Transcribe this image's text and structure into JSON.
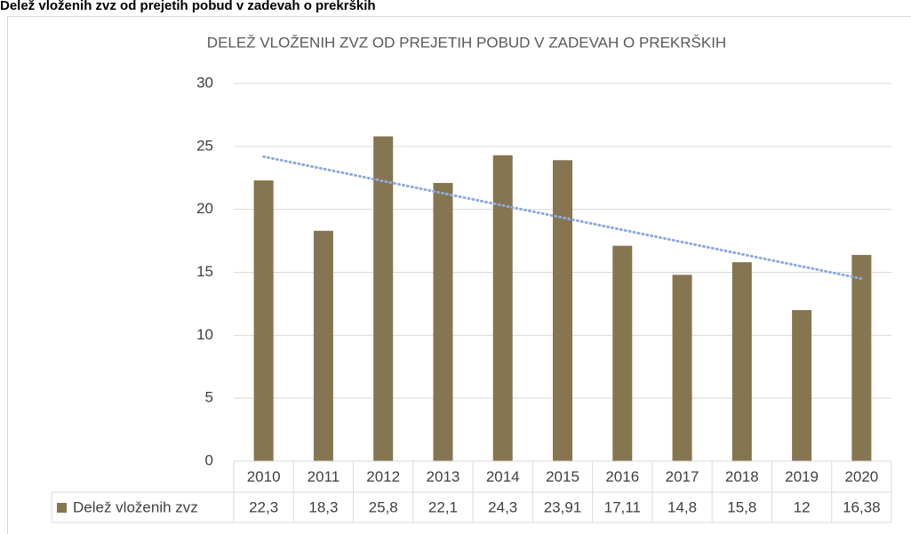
{
  "heading": "Delež vloženih zvz od prejetih pobud v zadevah o prekrških",
  "chart_data": {
    "type": "bar",
    "title": "DELEŽ VLOŽENIH ZVZ OD PREJETIH POBUD V ZADEVAH O PREKRŠKIH",
    "categories": [
      "2010",
      "2011",
      "2012",
      "2013",
      "2014",
      "2015",
      "2016",
      "2017",
      "2018",
      "2019",
      "2020"
    ],
    "series": [
      {
        "name": "Delež vloženih zvz",
        "color": "#857550",
        "values": [
          22.3,
          18.3,
          25.8,
          22.1,
          24.3,
          23.91,
          17.11,
          14.8,
          15.8,
          12,
          16.38
        ],
        "value_labels": [
          "22,3",
          "18,3",
          "25,8",
          "22,1",
          "24,3",
          "23,91",
          "17,11",
          "14,8",
          "15,8",
          "12",
          "16,38"
        ]
      }
    ],
    "ylim": [
      0,
      30
    ],
    "yticks": [
      0,
      5,
      10,
      15,
      20,
      25,
      30
    ],
    "grid": true,
    "trendline": "linear",
    "trendline_color": "#8faadc",
    "data_table": true
  }
}
